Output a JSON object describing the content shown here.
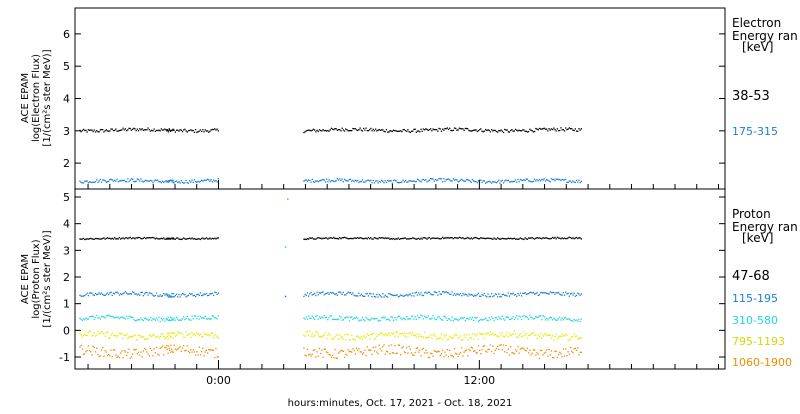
{
  "chart_data": [
    {
      "type": "scatter",
      "panel": "electron",
      "ylabel_lines": [
        "ACE EPAM",
        "log(Electron Flux)",
        "[1/(cm²s ster MeV)]"
      ],
      "ylim": [
        1.2,
        6.8
      ],
      "yticks": [
        2,
        3,
        4,
        5,
        6
      ],
      "xlim_hours": [
        -6.6,
        23.3
      ],
      "legend_title_lines": [
        "Electron",
        "Energy ran",
        "[keV]"
      ],
      "series": [
        {
          "name": "38-53",
          "color": "#000000",
          "level": 3.02,
          "jitter": 0.05,
          "segments": [
            [
              -6.4,
              -2.1
            ],
            [
              -2.4,
              0.0
            ],
            [
              3.9,
              16.7
            ]
          ]
        },
        {
          "name": "175-315",
          "color": "#1a7fd4",
          "level": 1.45,
          "jitter": 0.05,
          "segments": [
            [
              -6.4,
              -2.1
            ],
            [
              -2.4,
              0.0
            ],
            [
              3.9,
              16.7
            ]
          ]
        }
      ]
    },
    {
      "type": "scatter",
      "panel": "proton",
      "ylabel_lines": [
        "ACE EPAM",
        "log(Proton Flux)",
        "[1/(cm²s ster MeV)]"
      ],
      "ylim": [
        -1.45,
        5.3
      ],
      "yticks": [
        -1,
        0,
        1,
        2,
        3,
        4,
        5
      ],
      "xlim_hours": [
        -6.6,
        23.3
      ],
      "legend_title_lines": [
        "Proton",
        "Energy ran",
        "[keV]"
      ],
      "series": [
        {
          "name": "47-68",
          "color": "#000000",
          "level": 3.45,
          "jitter": 0.03,
          "segments": [
            [
              -6.4,
              -2.1
            ],
            [
              -2.4,
              0.0
            ],
            [
              3.9,
              16.7
            ]
          ]
        },
        {
          "name": "115-195",
          "color": "#1a7fd4",
          "level": 1.35,
          "jitter": 0.07,
          "segments": [
            [
              -6.4,
              -2.1
            ],
            [
              -2.4,
              0.0
            ],
            [
              3.9,
              16.7
            ]
          ]
        },
        {
          "name": "310-580",
          "color": "#22d6d6",
          "level": 0.45,
          "jitter": 0.08,
          "segments": [
            [
              -6.4,
              -2.1
            ],
            [
              -2.4,
              0.0
            ],
            [
              3.9,
              16.7
            ]
          ]
        },
        {
          "name": "795-1193",
          "color": "#e8e800",
          "level": -0.2,
          "jitter": 0.12,
          "segments": [
            [
              -6.4,
              -2.1
            ],
            [
              -2.4,
              0.0
            ],
            [
              3.9,
              16.7
            ]
          ]
        },
        {
          "name": "1060-1900",
          "color": "#f08c00",
          "level": -0.8,
          "jitter": 0.18,
          "segments": [
            [
              -6.4,
              -2.1
            ],
            [
              -2.4,
              0.0
            ],
            [
              3.9,
              16.7
            ]
          ]
        }
      ],
      "outliers": [
        {
          "x": 3.15,
          "y": 4.95,
          "color": "#f08c00"
        },
        {
          "x": 3.05,
          "y": 3.15,
          "color": "#22d6d6"
        },
        {
          "x": 3.05,
          "y": 1.3,
          "color": "#1a7fd4"
        }
      ]
    }
  ],
  "x_ticks": [
    {
      "hours": 0,
      "label": "0:00"
    },
    {
      "hours": 12,
      "label": "12:00"
    }
  ],
  "xlabel": "hours:minutes, Oct. 17, 2021 - Oct. 18, 2021"
}
